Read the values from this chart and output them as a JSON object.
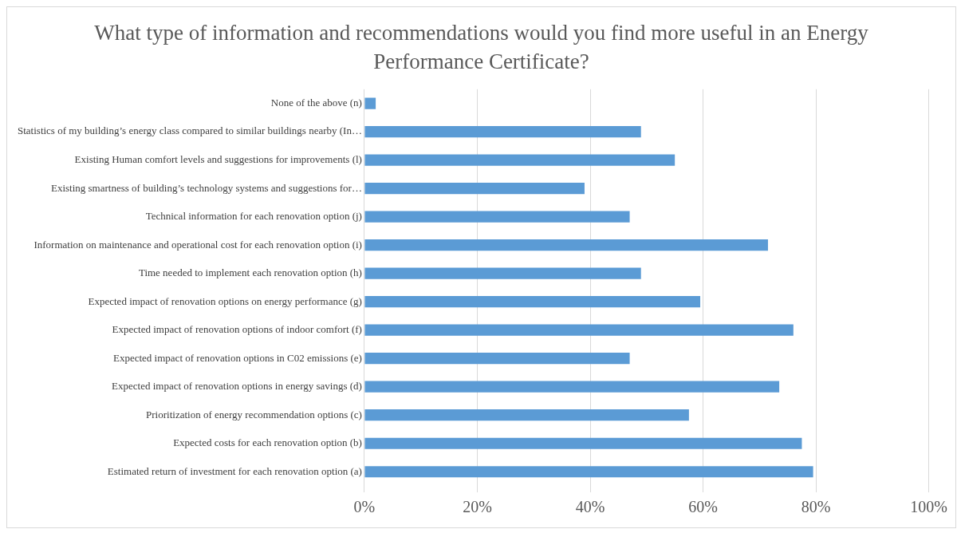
{
  "chart_data": {
    "type": "bar",
    "orientation": "horizontal",
    "title": "What type of information and recommendations would you find more useful in an Energy Performance Certificate?",
    "categories": [
      "None of the above (n)",
      "Statistics of my building’s energy class compared to similar buildings nearby (In…",
      "Existing Human comfort levels and suggestions for improvements (l)",
      "Existing smartness of building’s technology systems and suggestions for…",
      "Technical information for each renovation option (j)",
      "Information on maintenance and operational cost for each renovation option (i)",
      "Time needed to implement each renovation option (h)",
      "Expected impact of renovation options on energy performance (g)",
      "Expected impact of renovation options of indoor comfort (f)",
      "Expected impact of renovation options in C02 emissions (e)",
      "Expected impact of renovation options in energy savings (d)",
      "Prioritization of energy recommendation options (c)",
      "Expected costs for each renovation option (b)",
      "Estimated return of investment for each renovation option (a)"
    ],
    "values": [
      2,
      49,
      55,
      39,
      47,
      71.5,
      49,
      59.5,
      76,
      47,
      73.5,
      57.5,
      77.5,
      79.5
    ],
    "color": "#5b9bd5",
    "xlim": [
      0,
      100
    ],
    "xticks": [
      {
        "value": 0,
        "label": "0%"
      },
      {
        "value": 20,
        "label": "20%"
      },
      {
        "value": 40,
        "label": "40%"
      },
      {
        "value": 60,
        "label": "60%"
      },
      {
        "value": 80,
        "label": "80%"
      },
      {
        "value": 100,
        "label": "100%"
      }
    ],
    "grid": "x",
    "legend": false
  }
}
